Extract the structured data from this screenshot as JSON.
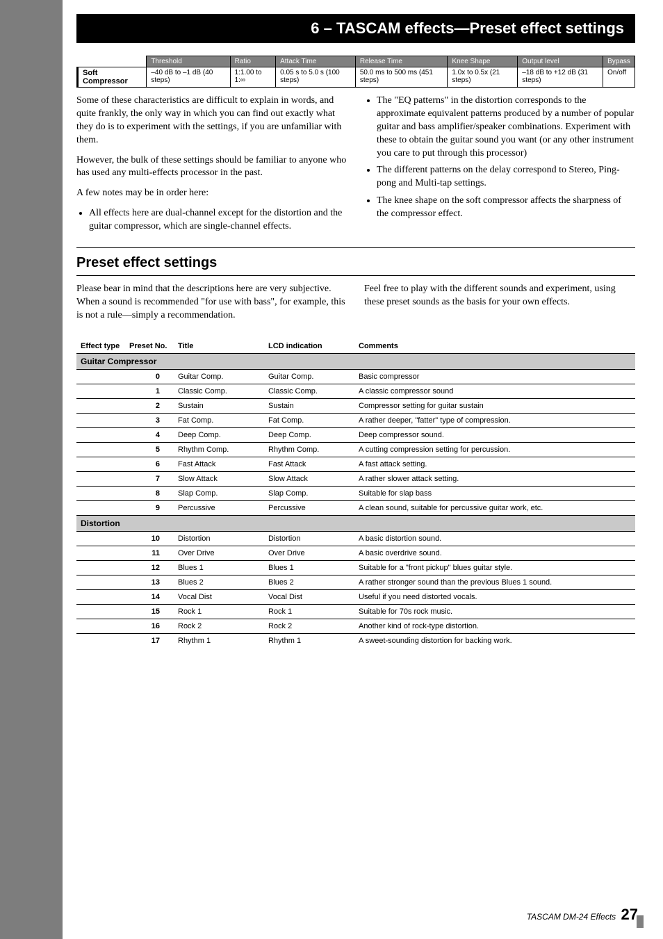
{
  "chapter_title": "6 – TASCAM effects—Preset effect settings",
  "param_table": {
    "headers": [
      "Threshold",
      "Ratio",
      "Attack Time",
      "Release Time",
      "Knee Shape",
      "Output level",
      "Bypass"
    ],
    "row_label": "Soft Compressor",
    "cells": [
      "–40 dB to –1 dB (40 steps)",
      "1:1.00 to 1:∞",
      "0.05 s to 5.0 s (100 steps)",
      "50.0 ms to 500 ms (451 steps)",
      "1.0x to 0.5x (21 steps)",
      "–18 dB to +12 dB (31 steps)",
      "On/off"
    ]
  },
  "left_paras": [
    "Some of these characteristics are difficult to explain in words, and quite frankly, the only way in which you can find out exactly what they do is to experiment with the settings, if you are unfamiliar with them.",
    "However, the bulk of these settings should be familiar to anyone who has used any multi-effects processor in the past.",
    "A few notes may be in order here:"
  ],
  "left_bullets": [
    "All effects here are dual-channel except for the distortion and the guitar compressor, which are single-channel effects."
  ],
  "right_bullets": [
    "The \"EQ patterns\" in the distortion corresponds to the approximate equivalent patterns produced by a number of popular guitar and bass amplifier/speaker combinations. Experiment with these to obtain the guitar sound you want (or any other instrument you care to put through this processor)",
    "The different patterns on the delay correspond to Stereo, Ping-pong and Multi-tap settings.",
    "The knee shape on the soft compressor affects the sharpness of the compressor effect."
  ],
  "section_heading": "Preset effect settings",
  "intro_left": "Please bear in mind that the descriptions here are very subjective. When a sound is recommended \"for use with bass\", for example, this is not a rule—simply a recommendation.",
  "intro_right": "Feel free to play with the different sounds and experiment, using these preset sounds as the basis for your own effects.",
  "preset_headers": [
    "Effect type",
    "Preset No.",
    "Title",
    "LCD indication",
    "Comments"
  ],
  "groups": [
    {
      "name": "Guitar Compressor",
      "rows": [
        {
          "no": "0",
          "title": "Guitar Comp.",
          "lcd": "Guitar Comp.",
          "comment": "Basic compressor"
        },
        {
          "no": "1",
          "title": "Classic Comp.",
          "lcd": "Classic Comp.",
          "comment": "A classic compressor sound"
        },
        {
          "no": "2",
          "title": "Sustain",
          "lcd": "Sustain",
          "comment": "Compressor setting for guitar sustain"
        },
        {
          "no": "3",
          "title": "Fat Comp.",
          "lcd": "Fat Comp.",
          "comment": "A rather deeper, \"fatter\" type of compression."
        },
        {
          "no": "4",
          "title": "Deep Comp.",
          "lcd": "Deep Comp.",
          "comment": "Deep compressor sound."
        },
        {
          "no": "5",
          "title": "Rhythm Comp.",
          "lcd": "Rhythm Comp.",
          "comment": "A cutting compression setting for percussion."
        },
        {
          "no": "6",
          "title": "Fast Attack",
          "lcd": "Fast Attack",
          "comment": "A fast attack setting."
        },
        {
          "no": "7",
          "title": "Slow Attack",
          "lcd": "Slow Attack",
          "comment": "A rather slower attack setting."
        },
        {
          "no": "8",
          "title": "Slap Comp.",
          "lcd": "Slap Comp.",
          "comment": "Suitable for slap bass"
        },
        {
          "no": "9",
          "title": "Percussive",
          "lcd": "Percussive",
          "comment": "A clean sound, suitable for percussive guitar work, etc."
        }
      ]
    },
    {
      "name": "Distortion",
      "rows": [
        {
          "no": "10",
          "title": "Distortion",
          "lcd": "Distortion",
          "comment": "A basic distortion sound."
        },
        {
          "no": "11",
          "title": "Over Drive",
          "lcd": "Over Drive",
          "comment": "A basic overdrive sound."
        },
        {
          "no": "12",
          "title": "Blues 1",
          "lcd": "Blues 1",
          "comment": "Suitable for a \"front pickup\" blues guitar style."
        },
        {
          "no": "13",
          "title": "Blues 2",
          "lcd": "Blues 2",
          "comment": "A rather stronger sound than the previous Blues 1 sound."
        },
        {
          "no": "14",
          "title": "Vocal Dist",
          "lcd": "Vocal Dist",
          "comment": "Useful if you need distorted vocals."
        },
        {
          "no": "15",
          "title": "Rock 1",
          "lcd": "Rock 1",
          "comment": "Suitable for 70s rock music."
        },
        {
          "no": "16",
          "title": "Rock 2",
          "lcd": "Rock 2",
          "comment": "Another kind of rock-type distortion."
        },
        {
          "no": "17",
          "title": "Rhythm 1",
          "lcd": "Rhythm 1",
          "comment": "A sweet-sounding distortion for backing work."
        }
      ]
    }
  ],
  "footer_text": "TASCAM DM-24 Effects",
  "page_number": "27"
}
